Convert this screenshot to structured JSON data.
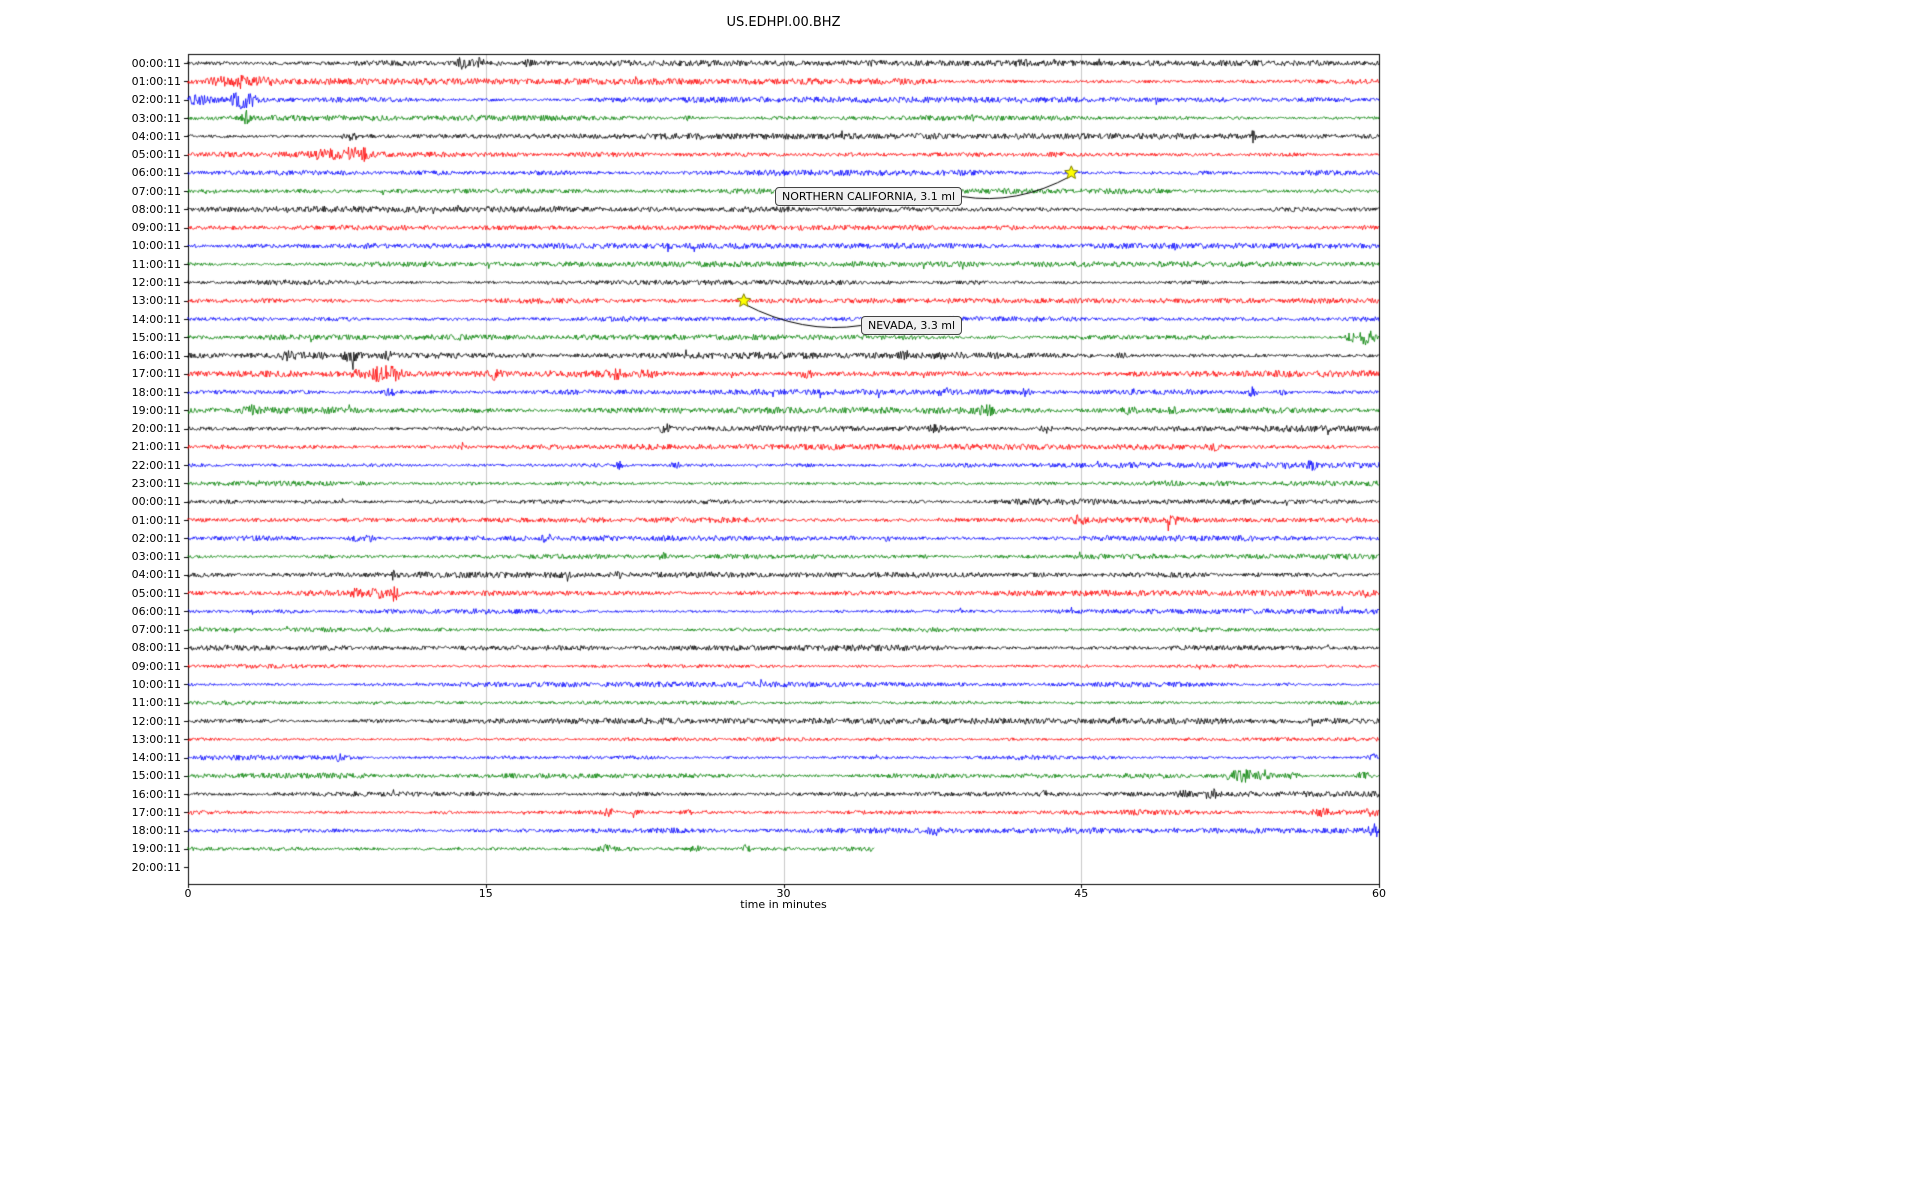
{
  "chart_data": {
    "type": "line",
    "subtype": "seismogram-dayplot",
    "title": "US.EDHPI.00.BHZ",
    "xlabel": "time in minutes",
    "x_range": [
      0,
      60
    ],
    "x_ticks": [
      0,
      15,
      30,
      45,
      60
    ],
    "grid": true,
    "grid_color": "#c8c8c8",
    "background": "#ffffff",
    "color_cycle": [
      "#000000",
      "#ff0000",
      "#0000ff",
      "#008000"
    ],
    "marker": {
      "shape": "star",
      "color": "#ffff00",
      "edge": "#808000"
    },
    "events": [
      {
        "label": "NORTHERN CALIFORNIA, 3.1 ml",
        "row_index": 6,
        "row_label": "06:00:11",
        "minute": 44.5
      },
      {
        "label": "NEVADA, 3.3 ml",
        "row_index": 13,
        "row_label": "13:00:11",
        "minute": 28.0
      }
    ],
    "rows": [
      {
        "label": "00:00:11",
        "color": "#000000",
        "amp": 1.9,
        "bursts": [
          [
            13.8,
            4.5,
            0.3
          ],
          [
            14.6,
            3.5,
            0.25
          ],
          [
            17.2,
            2.5,
            0.25
          ],
          [
            42.0,
            2.2,
            0.3
          ]
        ]
      },
      {
        "label": "01:00:11",
        "color": "#ff0000",
        "amp": 2.0,
        "bursts": [
          [
            1.6,
            3.5,
            0.5
          ],
          [
            2.6,
            4.5,
            0.4
          ],
          [
            3.6,
            3.5,
            0.35
          ],
          [
            4.3,
            2.8,
            0.3
          ]
        ]
      },
      {
        "label": "02:00:11",
        "color": "#0000ff",
        "amp": 1.9,
        "bursts": [
          [
            0.6,
            3.5,
            0.8
          ],
          [
            2.6,
            8.0,
            0.45
          ],
          [
            3.2,
            5.0,
            0.3
          ]
        ]
      },
      {
        "label": "03:00:11",
        "color": "#008000",
        "amp": 1.8,
        "bursts": [
          [
            2.9,
            7.0,
            0.18
          ],
          [
            25.2,
            2.2,
            0.25
          ],
          [
            39.5,
            2.2,
            0.25
          ]
        ]
      },
      {
        "label": "04:00:11",
        "color": "#000000",
        "amp": 1.9,
        "bursts": [
          [
            8.3,
            5.5,
            0.15
          ],
          [
            53.6,
            5.5,
            0.18
          ]
        ]
      },
      {
        "label": "05:00:11",
        "color": "#ff0000",
        "amp": 1.9,
        "bursts": [
          [
            7.0,
            3.5,
            0.8
          ],
          [
            8.3,
            8.5,
            0.3
          ],
          [
            8.9,
            4.5,
            0.25
          ]
        ]
      },
      {
        "label": "06:00:11",
        "color": "#0000ff",
        "amp": 1.8,
        "bursts": []
      },
      {
        "label": "07:00:11",
        "color": "#008000",
        "amp": 1.7,
        "bursts": []
      },
      {
        "label": "08:00:11",
        "color": "#000000",
        "amp": 2.0,
        "bursts": []
      },
      {
        "label": "09:00:11",
        "color": "#ff0000",
        "amp": 1.7,
        "bursts": []
      },
      {
        "label": "10:00:11",
        "color": "#0000ff",
        "amp": 1.8,
        "bursts": []
      },
      {
        "label": "11:00:11",
        "color": "#008000",
        "amp": 1.8,
        "bursts": []
      },
      {
        "label": "12:00:11",
        "color": "#000000",
        "amp": 1.9,
        "bursts": []
      },
      {
        "label": "13:00:11",
        "color": "#ff0000",
        "amp": 1.7,
        "bursts": []
      },
      {
        "label": "14:00:11",
        "color": "#0000ff",
        "amp": 1.8,
        "bursts": []
      },
      {
        "label": "15:00:11",
        "color": "#008000",
        "amp": 1.8,
        "bursts": [
          [
            58.6,
            3.5,
            0.3
          ],
          [
            59.4,
            7.0,
            0.4
          ]
        ]
      },
      {
        "label": "16:00:11",
        "color": "#000000",
        "amp": 2.2,
        "bursts": [
          [
            5.0,
            3.5,
            0.4
          ],
          [
            8.2,
            4.5,
            0.3
          ],
          [
            10.1,
            3.0,
            0.3
          ],
          [
            36.2,
            3.0,
            0.35
          ],
          [
            47.0,
            2.5,
            0.3
          ]
        ]
      },
      {
        "label": "17:00:11",
        "color": "#ff0000",
        "amp": 2.2,
        "bursts": [
          [
            8.6,
            3.5,
            0.4
          ],
          [
            9.8,
            7.5,
            0.55
          ],
          [
            10.4,
            5.5,
            0.35
          ],
          [
            15.5,
            4.5,
            0.25
          ],
          [
            21.6,
            3.5,
            0.45
          ],
          [
            23.1,
            3.2,
            0.35
          ],
          [
            31.2,
            2.8,
            0.4
          ]
        ]
      },
      {
        "label": "18:00:11",
        "color": "#0000ff",
        "amp": 1.9,
        "bursts": [
          [
            10.2,
            2.8,
            0.3
          ],
          [
            38.1,
            3.5,
            0.3
          ],
          [
            42.2,
            3.5,
            0.3
          ],
          [
            53.6,
            4.5,
            0.25
          ],
          [
            55.2,
            3.5,
            0.3
          ]
        ]
      },
      {
        "label": "19:00:11",
        "color": "#008000",
        "amp": 2.2,
        "bursts": [
          [
            3.1,
            2.8,
            0.5
          ],
          [
            40.2,
            3.2,
            0.4
          ],
          [
            47.4,
            2.8,
            0.3
          ],
          [
            49.7,
            3.2,
            0.3
          ]
        ]
      },
      {
        "label": "20:00:11",
        "color": "#000000",
        "amp": 2.0,
        "bursts": [
          [
            24.1,
            3.5,
            0.4
          ],
          [
            37.6,
            3.5,
            0.4
          ],
          [
            43.2,
            4.0,
            0.3
          ]
        ]
      },
      {
        "label": "21:00:11",
        "color": "#ff0000",
        "amp": 1.8,
        "bursts": [
          [
            13.8,
            3.5,
            0.2
          ],
          [
            51.6,
            3.0,
            0.3
          ]
        ]
      },
      {
        "label": "22:00:11",
        "color": "#0000ff",
        "amp": 1.9,
        "bursts": [
          [
            21.8,
            3.5,
            0.25
          ],
          [
            24.6,
            3.0,
            0.3
          ],
          [
            56.6,
            2.8,
            0.3
          ]
        ]
      },
      {
        "label": "23:00:11",
        "color": "#008000",
        "amp": 1.8,
        "bursts": []
      },
      {
        "label": "00:00:11",
        "color": "#000000",
        "amp": 1.9,
        "bursts": []
      },
      {
        "label": "01:00:11",
        "color": "#ff0000",
        "amp": 1.8,
        "bursts": [
          [
            44.9,
            2.8,
            0.3
          ],
          [
            49.6,
            3.5,
            0.35
          ]
        ]
      },
      {
        "label": "02:00:11",
        "color": "#0000ff",
        "amp": 1.8,
        "bursts": [
          [
            8.4,
            4.5,
            0.25
          ],
          [
            9.1,
            3.5,
            0.25
          ],
          [
            18.1,
            3.0,
            0.2
          ],
          [
            35.2,
            2.5,
            0.2
          ]
        ]
      },
      {
        "label": "03:00:11",
        "color": "#008000",
        "amp": 1.7,
        "bursts": [
          [
            23.9,
            2.8,
            0.2
          ]
        ]
      },
      {
        "label": "04:00:11",
        "color": "#000000",
        "amp": 1.9,
        "bursts": [
          [
            10.4,
            3.5,
            0.2
          ],
          [
            21.6,
            2.8,
            0.3
          ]
        ]
      },
      {
        "label": "05:00:11",
        "color": "#ff0000",
        "amp": 1.9,
        "bursts": [
          [
            8.6,
            3.5,
            0.6
          ],
          [
            9.6,
            3.8,
            0.3
          ],
          [
            10.4,
            7.5,
            0.22
          ]
        ]
      },
      {
        "label": "06:00:11",
        "color": "#0000ff",
        "amp": 1.7,
        "bursts": []
      },
      {
        "label": "07:00:11",
        "color": "#008000",
        "amp": 1.7,
        "bursts": []
      },
      {
        "label": "08:00:11",
        "color": "#000000",
        "amp": 2.0,
        "bursts": []
      },
      {
        "label": "09:00:11",
        "color": "#ff0000",
        "amp": 1.7,
        "bursts": []
      },
      {
        "label": "10:00:11",
        "color": "#0000ff",
        "amp": 1.7,
        "bursts": []
      },
      {
        "label": "11:00:11",
        "color": "#008000",
        "amp": 1.8,
        "bursts": []
      },
      {
        "label": "12:00:11",
        "color": "#000000",
        "amp": 1.9,
        "bursts": []
      },
      {
        "label": "13:00:11",
        "color": "#ff0000",
        "amp": 1.6,
        "bursts": []
      },
      {
        "label": "14:00:11",
        "color": "#0000ff",
        "amp": 1.9,
        "bursts": [
          [
            7.6,
            3.0,
            0.3
          ],
          [
            59.7,
            3.8,
            0.25
          ]
        ]
      },
      {
        "label": "15:00:11",
        "color": "#008000",
        "amp": 1.9,
        "bursts": [
          [
            52.6,
            4.5,
            0.3
          ],
          [
            53.3,
            6.5,
            0.4
          ],
          [
            54.2,
            5.5,
            0.4
          ],
          [
            55.6,
            3.2,
            0.4
          ],
          [
            59.2,
            3.8,
            0.35
          ]
        ]
      },
      {
        "label": "16:00:11",
        "color": "#000000",
        "amp": 2.0,
        "bursts": [
          [
            43.1,
            2.5,
            0.3
          ],
          [
            49.9,
            3.2,
            0.5
          ],
          [
            51.6,
            3.8,
            0.4
          ]
        ]
      },
      {
        "label": "17:00:11",
        "color": "#ff0000",
        "amp": 1.9,
        "bursts": [
          [
            21.2,
            3.2,
            0.3
          ],
          [
            22.6,
            2.8,
            0.3
          ],
          [
            25.1,
            2.8,
            0.3
          ],
          [
            57.1,
            2.8,
            0.6
          ],
          [
            59.6,
            3.2,
            0.3
          ]
        ]
      },
      {
        "label": "18:00:11",
        "color": "#0000ff",
        "amp": 1.9,
        "bursts": [
          [
            37.6,
            3.2,
            0.3
          ],
          [
            59.8,
            4.5,
            0.3
          ]
        ]
      },
      {
        "label": "19:00:11",
        "color": "#008000",
        "amp": 2.0,
        "end": 34.6,
        "bursts": [
          [
            21.1,
            2.8,
            0.3
          ],
          [
            25.6,
            2.8,
            0.3
          ],
          [
            28.1,
            3.2,
            0.3
          ]
        ]
      },
      {
        "label": "20:00:11",
        "color": "#000000",
        "amp": 0,
        "trace": false,
        "bursts": []
      }
    ]
  }
}
